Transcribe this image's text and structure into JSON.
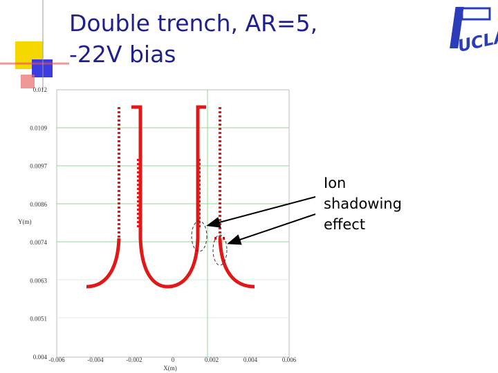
{
  "slide": {
    "title_lines": [
      "Double trench, AR=5,",
      "-22V bias"
    ],
    "logo": "UCLA",
    "annotation_lines": [
      "Ion",
      "shadowing",
      "effect"
    ]
  },
  "figure": {
    "y_axis_label": "Y(m)",
    "x_axis_label": "X(m)",
    "yticks": [
      "0.012",
      "0.0109",
      "0.0097",
      "0.0086",
      "0.0074",
      "0.0063",
      "0.0051",
      "0.004"
    ],
    "xticks": [
      "-0.006",
      "-0.004",
      "-0.002",
      "0",
      "0.002",
      "0.004",
      "0.006"
    ]
  }
}
